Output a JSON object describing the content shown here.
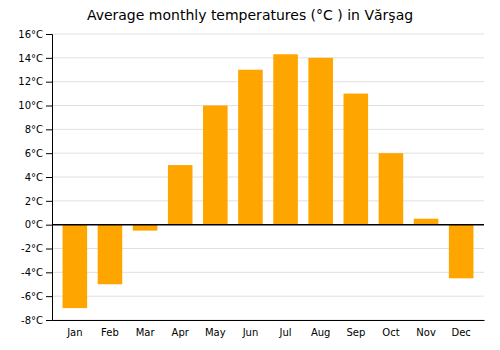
{
  "chart_data": {
    "type": "bar",
    "title": "Average monthly temperatures (°C ) in Vărşag",
    "categories": [
      "Jan",
      "Feb",
      "Mar",
      "Apr",
      "May",
      "Jun",
      "Jul",
      "Aug",
      "Sep",
      "Oct",
      "Nov",
      "Dec"
    ],
    "values": [
      -7,
      -5,
      -0.5,
      5,
      10,
      13,
      14.3,
      14,
      11,
      6,
      0.5,
      -4.5
    ],
    "color": "#FFA500",
    "ylim": [
      -8,
      16
    ],
    "yticks": [
      {
        "value": -8,
        "label": "-8°C"
      },
      {
        "value": -6,
        "label": "-6°C"
      },
      {
        "value": -4,
        "label": "-4°C"
      },
      {
        "value": -2,
        "label": "-2°C"
      },
      {
        "value": 0,
        "label": "0°C"
      },
      {
        "value": 2,
        "label": "2°C"
      },
      {
        "value": 4,
        "label": "4°C"
      },
      {
        "value": 6,
        "label": "6°C"
      },
      {
        "value": 8,
        "label": "8°C"
      },
      {
        "value": 10,
        "label": "10°C"
      },
      {
        "value": 12,
        "label": "12°C"
      },
      {
        "value": 14,
        "label": "14°C"
      },
      {
        "value": 16,
        "label": "16°C"
      }
    ],
    "grid": true
  }
}
